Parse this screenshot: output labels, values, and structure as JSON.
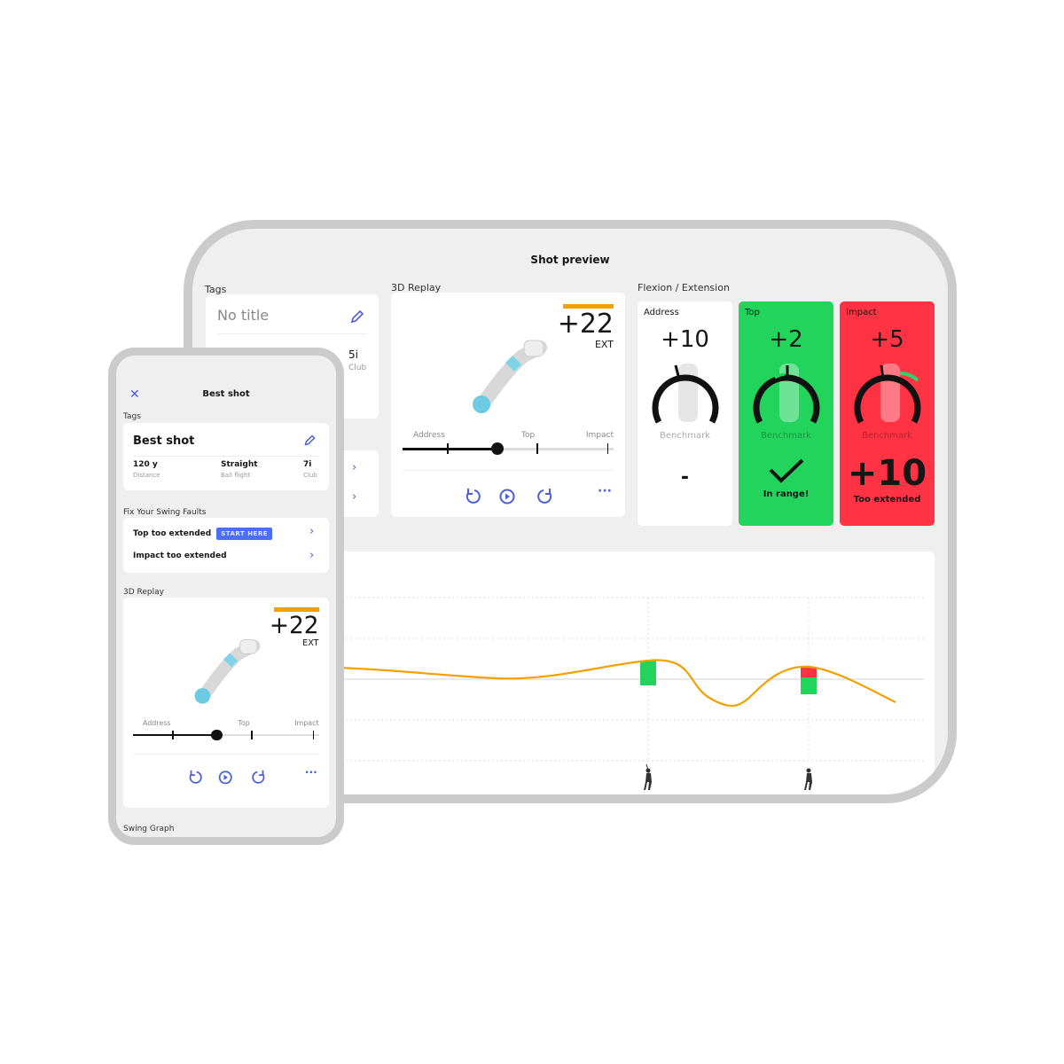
{
  "tablet": {
    "title": "Shot preview",
    "tags": {
      "label": "Tags",
      "title": "No title",
      "club_value": "5i",
      "club_label": "Club"
    },
    "replay": {
      "label": "3D Replay",
      "value": "+22",
      "unit": "EXT",
      "markers": [
        "Address",
        "Top",
        "Impact"
      ]
    },
    "flexion": {
      "label": "Flexion / Extension",
      "cards": [
        {
          "phase": "Address",
          "value": "+10",
          "benchmark": "Benchmark",
          "result": "-",
          "status": "none",
          "color": "#ffffff"
        },
        {
          "phase": "Top",
          "value": "+2",
          "benchmark": "Benchmark",
          "result": "In range!",
          "status": "in-range",
          "color": "#22d45c"
        },
        {
          "phase": "Impact",
          "value": "+5",
          "benchmark": "Benchmark",
          "result_value": "+10",
          "result": "Too extended",
          "status": "too-extended",
          "color": "#ff3344"
        }
      ]
    }
  },
  "phone": {
    "title": "Best shot",
    "tags": {
      "label": "Tags",
      "title": "Best shot",
      "stats": [
        {
          "value": "120 y",
          "label": "Distance"
        },
        {
          "value": "Straight",
          "label": "Ball flight"
        },
        {
          "value": "7i",
          "label": "Club"
        }
      ]
    },
    "faults": {
      "label": "Fix Your Swing Faults",
      "items": [
        {
          "label": "Top too extended",
          "badge": "START HERE"
        },
        {
          "label": "Impact too extended"
        }
      ]
    },
    "replay": {
      "label": "3D Replay",
      "value": "+22",
      "unit": "EXT",
      "markers": [
        "Address",
        "Top",
        "Impact"
      ]
    },
    "graph_label": "Swing Graph"
  },
  "colors": {
    "accent": "#4b5fd6",
    "orange": "#f5a000",
    "green": "#22d45c",
    "red": "#ff3344"
  },
  "icons": [
    "close-icon",
    "pencil-icon",
    "chevron-right-icon",
    "rewind-icon",
    "play-icon",
    "forward-icon",
    "more-icon",
    "golfer-icon"
  ]
}
